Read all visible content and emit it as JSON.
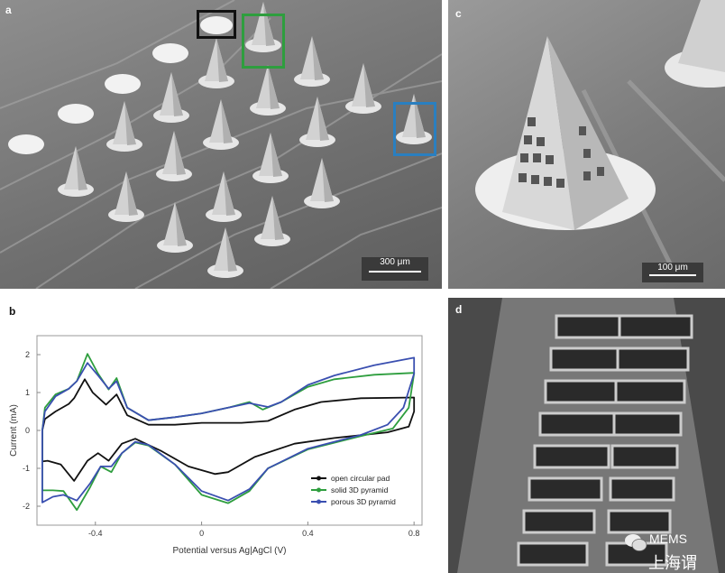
{
  "panels": {
    "a": {
      "label": "a",
      "scale_bar": "300 μm",
      "highlight_colors": [
        "#111111",
        "#2e9e3e",
        "#2a7fc0"
      ]
    },
    "b": {
      "label": "b"
    },
    "c": {
      "label": "c",
      "scale_bar": "100 μm"
    },
    "d": {
      "label": "d"
    }
  },
  "watermark": {
    "line1": "MEMS",
    "line2": "上海谓",
    "icon": "wechat-icon"
  },
  "chart_data": {
    "type": "line",
    "title": "",
    "xlabel": "Potential versus Ag|AgCl (V)",
    "ylabel": "Current (mA)",
    "xlim": [
      -0.62,
      0.83
    ],
    "ylim": [
      -2.5,
      2.5
    ],
    "xticks": [
      -0.4,
      0,
      0.4,
      0.8
    ],
    "xtick_labels": [
      "-0.4",
      "0",
      "0.4",
      "0.8"
    ],
    "yticks": [
      2,
      1,
      0,
      -1,
      -2
    ],
    "ytick_labels": [
      "2",
      "1",
      "0",
      "-1",
      "-2"
    ],
    "grid": false,
    "legend_placement": "bottom-right",
    "series": [
      {
        "name": "open circular pad",
        "color": "#111111",
        "points": [
          [
            -0.6,
            0
          ],
          [
            -0.59,
            0.3
          ],
          [
            -0.55,
            0.5
          ],
          [
            -0.5,
            0.7
          ],
          [
            -0.48,
            0.85
          ],
          [
            -0.44,
            1.35
          ],
          [
            -0.41,
            1.0
          ],
          [
            -0.36,
            0.68
          ],
          [
            -0.32,
            0.95
          ],
          [
            -0.28,
            0.4
          ],
          [
            -0.2,
            0.15
          ],
          [
            -0.1,
            0.15
          ],
          [
            0,
            0.2
          ],
          [
            0.15,
            0.2
          ],
          [
            0.25,
            0.25
          ],
          [
            0.35,
            0.55
          ],
          [
            0.45,
            0.75
          ],
          [
            0.6,
            0.85
          ],
          [
            0.8,
            0.87
          ],
          [
            0.8,
            0.5
          ],
          [
            0.78,
            0.1
          ],
          [
            0.7,
            -0.05
          ],
          [
            0.5,
            -0.2
          ],
          [
            0.35,
            -0.35
          ],
          [
            0.2,
            -0.7
          ],
          [
            0.1,
            -1.1
          ],
          [
            0.05,
            -1.15
          ],
          [
            -0.05,
            -0.95
          ],
          [
            -0.15,
            -0.55
          ],
          [
            -0.25,
            -0.22
          ],
          [
            -0.3,
            -0.35
          ],
          [
            -0.35,
            -0.8
          ],
          [
            -0.39,
            -0.6
          ],
          [
            -0.43,
            -0.8
          ],
          [
            -0.48,
            -1.33
          ],
          [
            -0.53,
            -0.9
          ],
          [
            -0.58,
            -0.8
          ],
          [
            -0.6,
            -0.82
          ],
          [
            -0.6,
            0
          ]
        ]
      },
      {
        "name": "solid 3D pyramid",
        "color": "#2e9e3e",
        "points": [
          [
            -0.6,
            0
          ],
          [
            -0.59,
            0.6
          ],
          [
            -0.55,
            0.95
          ],
          [
            -0.5,
            1.1
          ],
          [
            -0.47,
            1.3
          ],
          [
            -0.43,
            2.02
          ],
          [
            -0.39,
            1.5
          ],
          [
            -0.35,
            1.08
          ],
          [
            -0.32,
            1.38
          ],
          [
            -0.28,
            0.6
          ],
          [
            -0.2,
            0.27
          ],
          [
            -0.1,
            0.35
          ],
          [
            0,
            0.45
          ],
          [
            0.1,
            0.6
          ],
          [
            0.18,
            0.75
          ],
          [
            0.23,
            0.55
          ],
          [
            0.3,
            0.75
          ],
          [
            0.4,
            1.15
          ],
          [
            0.5,
            1.35
          ],
          [
            0.65,
            1.47
          ],
          [
            0.8,
            1.52
          ],
          [
            0.8,
            1.5
          ],
          [
            0.78,
            0.6
          ],
          [
            0.72,
            0.05
          ],
          [
            0.6,
            -0.15
          ],
          [
            0.4,
            -0.5
          ],
          [
            0.25,
            -1.0
          ],
          [
            0.18,
            -1.6
          ],
          [
            0.1,
            -1.92
          ],
          [
            0,
            -1.7
          ],
          [
            -0.1,
            -0.9
          ],
          [
            -0.2,
            -0.4
          ],
          [
            -0.25,
            -0.32
          ],
          [
            -0.3,
            -0.6
          ],
          [
            -0.34,
            -1.1
          ],
          [
            -0.38,
            -0.95
          ],
          [
            -0.42,
            -1.5
          ],
          [
            -0.47,
            -2.1
          ],
          [
            -0.52,
            -1.6
          ],
          [
            -0.56,
            -1.58
          ],
          [
            -0.6,
            -1.58
          ],
          [
            -0.6,
            0
          ]
        ]
      },
      {
        "name": "porous 3D pyramid",
        "color": "#3a4fb0",
        "points": [
          [
            -0.6,
            0
          ],
          [
            -0.59,
            0.5
          ],
          [
            -0.55,
            0.9
          ],
          [
            -0.5,
            1.1
          ],
          [
            -0.47,
            1.3
          ],
          [
            -0.43,
            1.78
          ],
          [
            -0.39,
            1.45
          ],
          [
            -0.35,
            1.1
          ],
          [
            -0.32,
            1.3
          ],
          [
            -0.28,
            0.6
          ],
          [
            -0.2,
            0.27
          ],
          [
            -0.1,
            0.35
          ],
          [
            0,
            0.45
          ],
          [
            0.1,
            0.6
          ],
          [
            0.18,
            0.72
          ],
          [
            0.25,
            0.62
          ],
          [
            0.3,
            0.75
          ],
          [
            0.4,
            1.2
          ],
          [
            0.5,
            1.45
          ],
          [
            0.65,
            1.72
          ],
          [
            0.8,
            1.92
          ],
          [
            0.8,
            1.5
          ],
          [
            0.76,
            0.6
          ],
          [
            0.7,
            0.15
          ],
          [
            0.6,
            -0.12
          ],
          [
            0.4,
            -0.48
          ],
          [
            0.25,
            -1.0
          ],
          [
            0.18,
            -1.55
          ],
          [
            0.1,
            -1.85
          ],
          [
            0,
            -1.6
          ],
          [
            -0.1,
            -0.9
          ],
          [
            -0.2,
            -0.38
          ],
          [
            -0.25,
            -0.3
          ],
          [
            -0.3,
            -0.6
          ],
          [
            -0.34,
            -0.95
          ],
          [
            -0.38,
            -0.95
          ],
          [
            -0.42,
            -1.4
          ],
          [
            -0.47,
            -1.85
          ],
          [
            -0.52,
            -1.7
          ],
          [
            -0.56,
            -1.75
          ],
          [
            -0.6,
            -1.9
          ],
          [
            -0.6,
            0
          ]
        ]
      }
    ]
  }
}
